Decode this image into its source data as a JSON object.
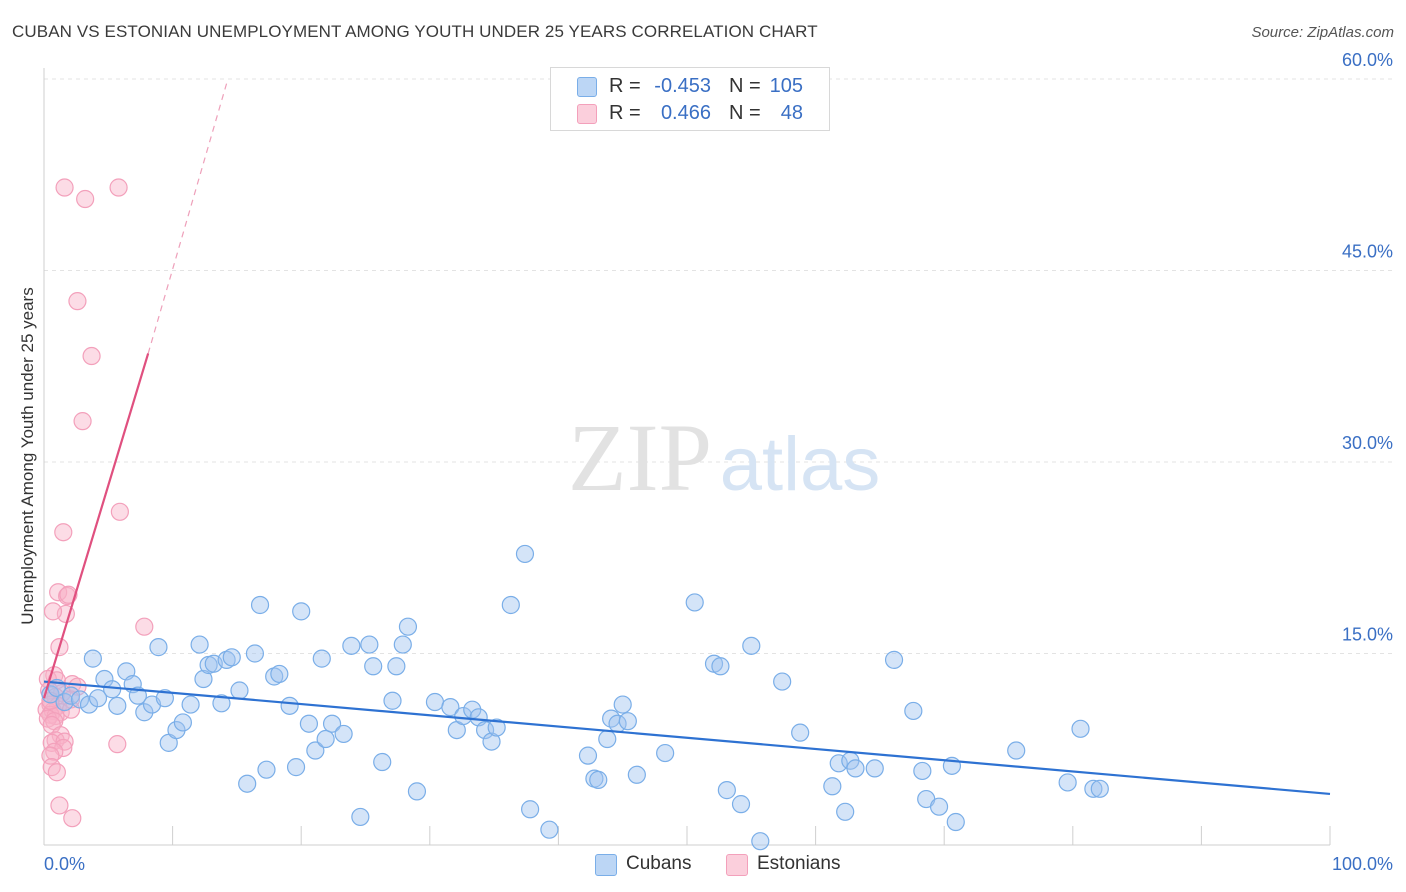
{
  "header": {
    "title": "CUBAN VS ESTONIAN UNEMPLOYMENT AMONG YOUTH UNDER 25 YEARS CORRELATION CHART",
    "source": "Source: ZipAtlas.com"
  },
  "legend_top": {
    "rows": [
      {
        "r_label": "R =",
        "r_value": "-0.453",
        "n_label": "N =",
        "n_value": "105"
      },
      {
        "r_label": "R =",
        "r_value": "0.466",
        "n_label": "N =",
        "n_value": "48"
      }
    ]
  },
  "watermark": {
    "zip": "ZIP",
    "atlas": "atlas"
  },
  "chart_data": {
    "type": "scatter",
    "title": "CUBAN VS ESTONIAN UNEMPLOYMENT AMONG YOUTH UNDER 25 YEARS CORRELATION CHART",
    "xlabel": "",
    "ylabel": "Unemployment Among Youth under 25 years",
    "xlim": [
      0,
      100
    ],
    "ylim": [
      0,
      60
    ],
    "x_tick_labels": [
      "0.0%",
      "100.0%"
    ],
    "y_ticks": [
      15,
      30,
      45,
      60
    ],
    "y_tick_labels": [
      "15.0%",
      "30.0%",
      "45.0%",
      "60.0%"
    ],
    "grid": true,
    "legend_position": "bottom-center",
    "colors": {
      "Cubans": "#7aaee8",
      "Estonians": "#f3a0bb",
      "Cubans_line": "#2e72d2",
      "Estonians_line": "#e0507f"
    },
    "series": [
      {
        "name": "Cubans",
        "r": -0.453,
        "n": 105,
        "trend": {
          "x": [
            0,
            100
          ],
          "y": [
            12.8,
            4.0
          ]
        },
        "points": [
          [
            0.5,
            11.8
          ],
          [
            1.0,
            12.3
          ],
          [
            1.6,
            11.2
          ],
          [
            2.1,
            11.7
          ],
          [
            2.8,
            11.4
          ],
          [
            3.5,
            11.0
          ],
          [
            3.8,
            14.6
          ],
          [
            4.2,
            11.5
          ],
          [
            4.7,
            13.0
          ],
          [
            5.3,
            12.2
          ],
          [
            5.7,
            10.9
          ],
          [
            6.4,
            13.6
          ],
          [
            6.9,
            12.6
          ],
          [
            7.3,
            11.7
          ],
          [
            7.8,
            10.4
          ],
          [
            8.4,
            11.0
          ],
          [
            8.9,
            15.5
          ],
          [
            9.4,
            11.5
          ],
          [
            9.7,
            8.0
          ],
          [
            10.3,
            9.0
          ],
          [
            10.8,
            9.6
          ],
          [
            11.4,
            11.0
          ],
          [
            12.1,
            15.7
          ],
          [
            12.4,
            13.0
          ],
          [
            12.8,
            14.1
          ],
          [
            13.2,
            14.2
          ],
          [
            13.8,
            11.1
          ],
          [
            14.2,
            14.5
          ],
          [
            14.6,
            14.7
          ],
          [
            15.2,
            12.1
          ],
          [
            15.8,
            4.8
          ],
          [
            16.4,
            15.0
          ],
          [
            16.8,
            18.8
          ],
          [
            17.3,
            5.9
          ],
          [
            17.9,
            13.2
          ],
          [
            18.3,
            13.4
          ],
          [
            19.1,
            10.9
          ],
          [
            19.6,
            6.1
          ],
          [
            20.0,
            18.3
          ],
          [
            20.6,
            9.5
          ],
          [
            21.1,
            7.4
          ],
          [
            21.6,
            14.6
          ],
          [
            21.9,
            8.3
          ],
          [
            22.4,
            9.5
          ],
          [
            23.3,
            8.7
          ],
          [
            23.9,
            15.6
          ],
          [
            24.6,
            2.2
          ],
          [
            25.3,
            15.7
          ],
          [
            25.6,
            14.0
          ],
          [
            26.3,
            6.5
          ],
          [
            27.1,
            11.3
          ],
          [
            27.4,
            14.0
          ],
          [
            27.9,
            15.7
          ],
          [
            28.3,
            17.1
          ],
          [
            29.0,
            4.2
          ],
          [
            30.4,
            11.2
          ],
          [
            31.6,
            10.8
          ],
          [
            32.1,
            9.0
          ],
          [
            32.6,
            10.1
          ],
          [
            33.3,
            10.6
          ],
          [
            33.8,
            10.0
          ],
          [
            34.3,
            9.0
          ],
          [
            34.8,
            8.1
          ],
          [
            35.2,
            9.2
          ],
          [
            36.3,
            18.8
          ],
          [
            37.4,
            22.8
          ],
          [
            37.8,
            2.8
          ],
          [
            39.3,
            1.2
          ],
          [
            42.3,
            7.0
          ],
          [
            42.8,
            5.2
          ],
          [
            43.1,
            5.1
          ],
          [
            43.8,
            8.3
          ],
          [
            44.1,
            9.9
          ],
          [
            44.6,
            9.5
          ],
          [
            45.0,
            11.0
          ],
          [
            45.4,
            9.7
          ],
          [
            46.1,
            5.5
          ],
          [
            48.3,
            7.2
          ],
          [
            50.6,
            19.0
          ],
          [
            52.1,
            14.2
          ],
          [
            52.6,
            14.0
          ],
          [
            53.1,
            4.3
          ],
          [
            54.2,
            3.2
          ],
          [
            55.0,
            15.6
          ],
          [
            55.7,
            0.3
          ],
          [
            57.4,
            12.8
          ],
          [
            58.8,
            8.8
          ],
          [
            61.3,
            4.6
          ],
          [
            61.8,
            6.4
          ],
          [
            62.3,
            2.6
          ],
          [
            62.7,
            6.6
          ],
          [
            63.1,
            6.0
          ],
          [
            64.6,
            6.0
          ],
          [
            66.1,
            14.5
          ],
          [
            67.6,
            10.5
          ],
          [
            68.3,
            5.8
          ],
          [
            68.6,
            3.6
          ],
          [
            69.6,
            3.0
          ],
          [
            70.6,
            6.2
          ],
          [
            70.9,
            1.8
          ],
          [
            75.6,
            7.4
          ],
          [
            79.6,
            4.9
          ],
          [
            80.6,
            9.1
          ],
          [
            81.6,
            4.4
          ],
          [
            82.1,
            4.4
          ]
        ]
      },
      {
        "name": "Estonians",
        "r": 0.466,
        "n": 48,
        "trend": {
          "x": [
            0,
            8.1
          ],
          "y": [
            11.5,
            38.5
          ]
        },
        "trend_extension": {
          "x": [
            8.1,
            14.3
          ],
          "y": [
            38.5,
            60.0
          ]
        },
        "points": [
          [
            1.6,
            51.5
          ],
          [
            5.8,
            51.5
          ],
          [
            3.2,
            50.6
          ],
          [
            2.6,
            42.6
          ],
          [
            3.7,
            38.3
          ],
          [
            3.0,
            33.2
          ],
          [
            5.9,
            26.1
          ],
          [
            1.5,
            24.5
          ],
          [
            1.1,
            19.8
          ],
          [
            1.8,
            19.5
          ],
          [
            1.9,
            19.6
          ],
          [
            1.7,
            18.1
          ],
          [
            0.7,
            18.3
          ],
          [
            7.8,
            17.1
          ],
          [
            1.2,
            15.5
          ],
          [
            0.8,
            13.3
          ],
          [
            0.3,
            13.0
          ],
          [
            1.0,
            12.9
          ],
          [
            2.2,
            12.6
          ],
          [
            2.6,
            12.4
          ],
          [
            0.4,
            12.1
          ],
          [
            1.4,
            11.9
          ],
          [
            0.9,
            11.6
          ],
          [
            2.1,
            11.4
          ],
          [
            0.5,
            11.0
          ],
          [
            1.1,
            10.9
          ],
          [
            0.2,
            10.6
          ],
          [
            0.7,
            10.5
          ],
          [
            1.3,
            10.4
          ],
          [
            0.5,
            10.2
          ],
          [
            0.9,
            10.1
          ],
          [
            0.3,
            9.9
          ],
          [
            0.8,
            9.7
          ],
          [
            2.1,
            10.6
          ],
          [
            0.6,
            9.4
          ],
          [
            1.3,
            8.6
          ],
          [
            0.9,
            8.2
          ],
          [
            0.6,
            8.0
          ],
          [
            1.6,
            8.1
          ],
          [
            5.7,
            7.9
          ],
          [
            1.5,
            7.6
          ],
          [
            0.8,
            7.3
          ],
          [
            0.5,
            7.0
          ],
          [
            0.6,
            6.1
          ],
          [
            1.0,
            5.7
          ],
          [
            1.2,
            3.1
          ],
          [
            2.2,
            2.1
          ],
          [
            0.5,
            11.3
          ]
        ]
      }
    ]
  },
  "legend_bottom": {
    "items": [
      {
        "label": "Cubans"
      },
      {
        "label": "Estonians"
      }
    ]
  }
}
